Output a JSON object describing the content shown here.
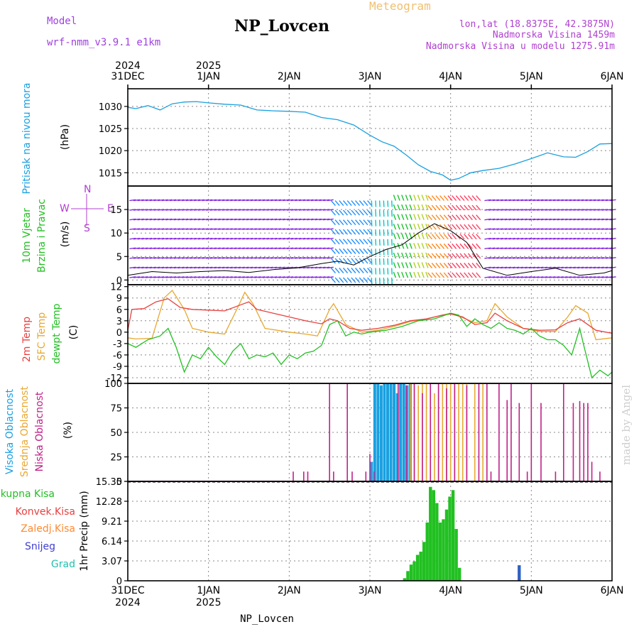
{
  "header": {
    "model_label": "Model",
    "model_name": "wrf-nmm_v3.9.1 e1km",
    "title": "NP_Lovcen",
    "subtitle": "Meteogram",
    "lonlat": "lon,lat (18.8375E, 42.3875N)",
    "elevation": "Nadmorska Visina 1459m",
    "model_elevation": "Nadmorska Visina u modelu 1275.91m"
  },
  "footer": {
    "station": "NP_Lovcen"
  },
  "watermark": "made by Angel",
  "colors": {
    "pressure": "#1aa0e0",
    "temp2m": "#e84040",
    "sfc_temp": "#e8a830",
    "dewpoint": "#22c022",
    "high_cloud": "#1aa0e0",
    "mid_cloud": "#e8a830",
    "low_cloud": "#c0208a",
    "total_precip": "#22c022",
    "snow": "#3060c0"
  },
  "time_axis": {
    "top_years": [
      "2024",
      "2025"
    ],
    "top_dates": [
      "31DEC",
      "1JAN",
      "2JAN",
      "3JAN",
      "4JAN",
      "5JAN",
      "6JAN"
    ],
    "bottom_dates": [
      "31DEC",
      "1JAN",
      "2JAN",
      "3JAN",
      "4JAN",
      "5JAN",
      "6JAN"
    ],
    "bottom_years": [
      "2024",
      "2025"
    ]
  },
  "chart_data": [
    {
      "type": "line",
      "panel": "pressure",
      "labels": [
        "Pritisak na nivou mora",
        "(hPa)"
      ],
      "ylim": [
        1012,
        1034
      ],
      "yticks": [
        "1015",
        "1020",
        "1025",
        "1030"
      ],
      "x_unit": "days since 31DEC 00UTC",
      "x": [
        0,
        0.1,
        0.25,
        0.4,
        0.55,
        0.7,
        0.85,
        1.0,
        1.2,
        1.4,
        1.6,
        1.8,
        2.0,
        2.2,
        2.4,
        2.6,
        2.8,
        3.0,
        3.15,
        3.3,
        3.45,
        3.6,
        3.75,
        3.9,
        4.0,
        4.1,
        4.25,
        4.4,
        4.6,
        4.8,
        5.0,
        5.2,
        5.4,
        5.55,
        5.7,
        5.85,
        6.0
      ],
      "series": [
        {
          "name": "Pritisak na nivou mora",
          "values": [
            1029.8,
            1029.5,
            1030.2,
            1029.2,
            1030.6,
            1031.0,
            1031.1,
            1030.8,
            1030.5,
            1030.3,
            1029.2,
            1029.0,
            1028.9,
            1028.7,
            1027.5,
            1027.0,
            1025.8,
            1023.5,
            1022.0,
            1021.0,
            1019.0,
            1016.8,
            1015.3,
            1014.5,
            1013.3,
            1013.7,
            1015.0,
            1015.5,
            1016.0,
            1017.0,
            1018.2,
            1019.5,
            1018.6,
            1018.5,
            1019.8,
            1021.5,
            1021.6
          ]
        }
      ]
    },
    {
      "type": "line",
      "panel": "wind",
      "labels": [
        "10m Vjetar",
        "Brzina i Pravac",
        "(m/s)"
      ],
      "compass": [
        "N",
        "W",
        "E",
        "S"
      ],
      "ylim": [
        -1,
        20
      ],
      "yticks": [
        "0",
        "5",
        "10",
        "15"
      ],
      "x": [
        0,
        0.3,
        0.6,
        0.9,
        1.2,
        1.5,
        1.8,
        2.1,
        2.4,
        2.6,
        2.8,
        3.0,
        3.2,
        3.4,
        3.6,
        3.8,
        4.0,
        4.2,
        4.4,
        4.7,
        5.0,
        5.3,
        5.6,
        5.9,
        6.0
      ],
      "series": [
        {
          "name": "Brzina",
          "values": [
            1.0,
            1.8,
            1.5,
            1.8,
            2.0,
            1.6,
            2.2,
            2.6,
            3.5,
            4.0,
            3.2,
            5.0,
            6.5,
            7.5,
            10.0,
            12.0,
            10.5,
            8.0,
            2.5,
            1.0,
            1.8,
            2.5,
            1.0,
            1.5,
            2.0
          ]
        }
      ],
      "direction_bands": [
        {
          "from": 0.0,
          "to": 2.5,
          "color": "#8a2be2"
        },
        {
          "from": 2.5,
          "to": 3.0,
          "color": "#1e90ff"
        },
        {
          "from": 3.0,
          "to": 3.3,
          "color": "#00c8c8"
        },
        {
          "from": 3.3,
          "to": 3.55,
          "color": "#20c030"
        },
        {
          "from": 3.55,
          "to": 3.75,
          "color": "#b0d020"
        },
        {
          "from": 3.75,
          "to": 4.0,
          "color": "#ff8a20"
        },
        {
          "from": 4.0,
          "to": 4.4,
          "color": "#ff4060"
        },
        {
          "from": 4.4,
          "to": 6.0,
          "color": "#8a2be2"
        }
      ]
    },
    {
      "type": "line",
      "panel": "temperature",
      "labels": [
        "2m Temp",
        "SFC Temp",
        "dewpt Temp",
        "(C)"
      ],
      "ylim": [
        -13.5,
        12.5
      ],
      "yticks": [
        "12",
        "9",
        "6",
        "3",
        "0",
        "-3",
        "-6",
        "-9",
        "-12"
      ],
      "series": [
        {
          "name": "2m Temp",
          "x": [
            0,
            0.05,
            0.2,
            0.35,
            0.5,
            0.65,
            0.8,
            1.0,
            1.2,
            1.4,
            1.5,
            1.6,
            1.8,
            2.0,
            2.2,
            2.4,
            2.5,
            2.6,
            2.75,
            2.9,
            3.1,
            3.3,
            3.5,
            3.7,
            3.9,
            4.0,
            4.15,
            4.3,
            4.45,
            4.55,
            4.7,
            4.9,
            5.1,
            5.3,
            5.45,
            5.6,
            5.8,
            6.0
          ],
          "values": [
            0.5,
            6.0,
            6.2,
            8.0,
            8.8,
            6.5,
            6.0,
            5.8,
            5.6,
            7.2,
            8.0,
            6.0,
            5.0,
            4.0,
            3.0,
            2.2,
            3.5,
            3.0,
            1.0,
            0.5,
            1.0,
            1.8,
            3.0,
            3.5,
            4.5,
            4.8,
            4.0,
            2.0,
            2.5,
            5.0,
            3.0,
            1.0,
            0.5,
            0.6,
            2.5,
            3.5,
            0.5,
            -0.3
          ]
        },
        {
          "name": "SFC Temp",
          "x": [
            0,
            0.1,
            0.3,
            0.45,
            0.55,
            0.7,
            0.8,
            1.0,
            1.2,
            1.35,
            1.45,
            1.55,
            1.7,
            2.0,
            2.2,
            2.35,
            2.5,
            2.55,
            2.7,
            2.9,
            3.1,
            3.3,
            3.5,
            3.7,
            3.9,
            4.0,
            4.15,
            4.3,
            4.45,
            4.55,
            4.7,
            4.9,
            5.1,
            5.3,
            5.45,
            5.55,
            5.7,
            5.8,
            6.0
          ],
          "values": [
            -1.5,
            -1.8,
            -1.6,
            9.0,
            11.0,
            6.0,
            1.0,
            0.0,
            -0.5,
            6.0,
            10.5,
            7.5,
            1.0,
            0.0,
            -0.5,
            -1.0,
            6.0,
            7.5,
            2.0,
            0.0,
            0.5,
            1.5,
            2.8,
            3.5,
            4.5,
            5.0,
            3.8,
            2.5,
            3.0,
            7.5,
            4.0,
            1.0,
            0.2,
            0.2,
            4.0,
            7.0,
            5.0,
            -2.0,
            -1.5
          ]
        },
        {
          "name": "dewpt Temp",
          "x": [
            0,
            0.1,
            0.25,
            0.4,
            0.5,
            0.6,
            0.7,
            0.8,
            0.9,
            1.0,
            1.1,
            1.2,
            1.3,
            1.4,
            1.5,
            1.6,
            1.7,
            1.8,
            1.9,
            2.0,
            2.1,
            2.2,
            2.3,
            2.4,
            2.5,
            2.6,
            2.7,
            2.8,
            2.9,
            3.0,
            3.2,
            3.4,
            3.6,
            3.8,
            4.0,
            4.1,
            4.2,
            4.3,
            4.4,
            4.5,
            4.6,
            4.7,
            4.8,
            4.9,
            5.0,
            5.1,
            5.2,
            5.3,
            5.4,
            5.5,
            5.6,
            5.65,
            5.75,
            5.85,
            5.95,
            6.0
          ],
          "values": [
            -3.0,
            -4.0,
            -2.0,
            -1.0,
            1.0,
            -4.0,
            -10.5,
            -6.0,
            -7.0,
            -4.0,
            -6.5,
            -8.5,
            -5.0,
            -3.0,
            -7.0,
            -6.0,
            -6.5,
            -5.5,
            -8.5,
            -6.0,
            -7.0,
            -5.5,
            -5.0,
            -3.5,
            2.0,
            3.0,
            -1.0,
            0.0,
            -0.5,
            0.0,
            0.5,
            1.5,
            3.0,
            3.5,
            5.0,
            4.5,
            1.5,
            3.5,
            2.0,
            1.0,
            2.5,
            1.0,
            0.5,
            -0.5,
            1.0,
            -1.0,
            -2.0,
            -2.0,
            -3.5,
            -6.0,
            1.0,
            -3.5,
            -12.0,
            -10.0,
            -11.5,
            -10.5
          ]
        }
      ]
    },
    {
      "type": "bar",
      "panel": "clouds",
      "labels": [
        "Visoka Oblacnost",
        "Srednja Oblacnost",
        "Niska Oblacnost",
        "(%)"
      ],
      "ylim": [
        0,
        100
      ],
      "yticks": [
        "0",
        "25",
        "50",
        "75",
        "100"
      ],
      "series": [
        {
          "name": "Visoka Oblacnost",
          "x": [
            3.02,
            3.06,
            3.1,
            3.14,
            3.18,
            3.22,
            3.26,
            3.3,
            3.34,
            3.38,
            3.42,
            3.46,
            3.5
          ],
          "values": [
            20,
            100,
            100,
            98,
            100,
            100,
            100,
            100,
            90,
            100,
            100,
            98,
            100
          ]
        },
        {
          "name": "Srednja Oblacnost",
          "x": [
            3.5,
            3.55,
            3.6,
            3.65,
            3.7,
            3.75,
            3.8,
            3.85,
            3.9,
            3.95,
            4.0,
            4.05,
            4.1,
            4.15,
            4.2,
            4.3,
            4.4
          ],
          "values": [
            100,
            100,
            98,
            100,
            100,
            100,
            90,
            100,
            100,
            100,
            100,
            100,
            100,
            100,
            100,
            100,
            100
          ]
        },
        {
          "name": "Niska Oblacnost",
          "x": [
            2.05,
            2.18,
            2.23,
            2.5,
            2.55,
            2.72,
            2.78,
            2.95,
            3.0,
            3.05,
            3.35,
            3.45,
            3.55,
            3.65,
            3.75,
            3.85,
            3.95,
            4.05,
            4.2,
            4.35,
            4.45,
            4.5,
            4.6,
            4.7,
            4.75,
            4.85,
            4.95,
            5.0,
            5.12,
            5.3,
            5.4,
            5.52,
            5.6,
            5.65,
            5.7,
            5.75,
            5.85
          ],
          "values": [
            10,
            10,
            10,
            100,
            10,
            100,
            10,
            10,
            28,
            10,
            100,
            98,
            100,
            90,
            100,
            100,
            95,
            100,
            98,
            100,
            100,
            10,
            100,
            83,
            100,
            80,
            10,
            100,
            80,
            10,
            100,
            80,
            82,
            80,
            80,
            20,
            10
          ]
        }
      ]
    },
    {
      "type": "bar",
      "panel": "precip",
      "labels": [
        "Ukupna Kisa",
        "Konvek.Kisa",
        "Zaledj.Kisa",
        "Snijeg",
        "Grad",
        "1hr Precip (mm)"
      ],
      "ylim": [
        0,
        15.35
      ],
      "yticks": [
        "0",
        "3.07",
        "6.14",
        "9.21",
        "12.28",
        "15.35"
      ],
      "series": [
        {
          "name": "Ukupna Kisa",
          "x": [
            3.43,
            3.47,
            3.51,
            3.55,
            3.59,
            3.63,
            3.67,
            3.71,
            3.75,
            3.79,
            3.83,
            3.87,
            3.91,
            3.95,
            3.99,
            4.03,
            4.07,
            4.11
          ],
          "values": [
            0.4,
            1.5,
            2.5,
            3.0,
            4.0,
            4.5,
            6.0,
            9.0,
            14.5,
            14.0,
            12.0,
            9.0,
            9.5,
            11.0,
            13.0,
            14.0,
            8.0,
            2.0
          ]
        },
        {
          "name": "Snijeg",
          "x": [
            4.85
          ],
          "values": [
            2.4
          ]
        }
      ]
    }
  ]
}
